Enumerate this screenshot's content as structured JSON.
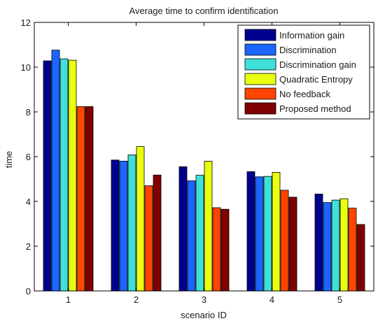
{
  "chart_data": {
    "type": "bar",
    "title": "Average time to confirm identification",
    "xlabel": "scenario ID",
    "ylabel": "time",
    "categories": [
      "1",
      "2",
      "3",
      "4",
      "5"
    ],
    "ylim": [
      0,
      12
    ],
    "yticks": [
      0,
      2,
      4,
      6,
      8,
      10,
      12
    ],
    "grid": false,
    "legend_position": "top-right",
    "series": [
      {
        "name": "Information gain",
        "color": "#00008f",
        "values": [
          10.28,
          5.85,
          5.55,
          5.33,
          4.33
        ]
      },
      {
        "name": "Discrimination",
        "color": "#1a66ff",
        "values": [
          10.76,
          5.8,
          4.92,
          5.1,
          3.95
        ]
      },
      {
        "name": "Discrimination gain",
        "color": "#40e0d8",
        "values": [
          10.37,
          6.08,
          5.17,
          5.12,
          4.06
        ]
      },
      {
        "name": "Quadratic Entropy",
        "color": "#e8ff10",
        "values": [
          10.31,
          6.45,
          5.8,
          5.3,
          4.12
        ]
      },
      {
        "name": "No feedback",
        "color": "#ff4500",
        "values": [
          8.24,
          4.7,
          3.72,
          4.5,
          3.7
        ]
      },
      {
        "name": "Proposed method",
        "color": "#800000",
        "values": [
          8.24,
          5.18,
          3.65,
          4.19,
          2.97
        ]
      }
    ]
  }
}
